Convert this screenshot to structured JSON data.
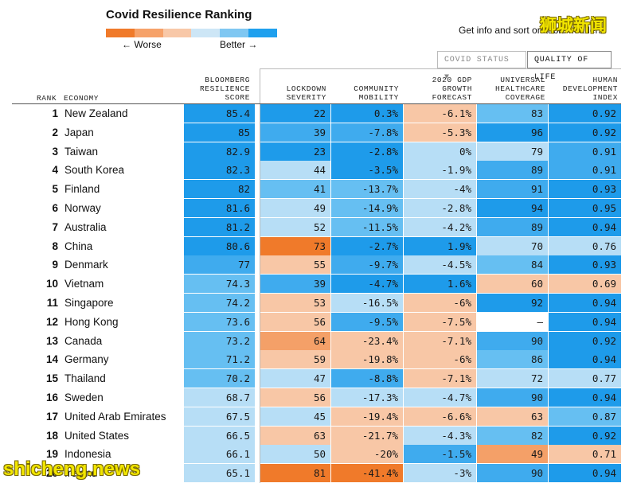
{
  "title": "Covid Resilience Ranking",
  "legend": {
    "worse": "← Worse",
    "better": "Better →",
    "scale_colors": [
      "#f07a2a",
      "#f6a26a",
      "#f8c8a8",
      "#cde6f6",
      "#7fc7f2",
      "#1fa0ee"
    ]
  },
  "info_text": "Get info and sort on table headers",
  "tabs": [
    {
      "label": "COVID STATUS ▼",
      "active": false
    },
    {
      "label": "QUALITY OF LIFE",
      "active": true
    }
  ],
  "headers": {
    "rank": "RANK",
    "economy": "ECONOMY",
    "score": [
      "BLOOMBERG",
      "RESILIENCE",
      "SCORE"
    ],
    "lockdown": [
      "LOCKDOWN",
      "SEVERITY"
    ],
    "mobility": [
      "COMMUNITY",
      "MOBILITY"
    ],
    "gdp": [
      "2020 GDP",
      "GROWTH",
      "FORECAST"
    ],
    "health": [
      "UNIVERSAL",
      "HEALTHCARE",
      "COVERAGE"
    ],
    "hdi": [
      "HUMAN",
      "DEVELOPMENT",
      "INDEX"
    ]
  },
  "rows": [
    {
      "rank": "1",
      "economy": "New Zealand",
      "score": "85.4",
      "lockdown": "22",
      "mobility": "0.3%",
      "gdp": "-6.1%",
      "health": "83",
      "hdi": "0.92"
    },
    {
      "rank": "2",
      "economy": "Japan",
      "score": "85",
      "lockdown": "39",
      "mobility": "-7.8%",
      "gdp": "-5.3%",
      "health": "96",
      "hdi": "0.92"
    },
    {
      "rank": "3",
      "economy": "Taiwan",
      "score": "82.9",
      "lockdown": "23",
      "mobility": "-2.8%",
      "gdp": "0%",
      "health": "79",
      "hdi": "0.91"
    },
    {
      "rank": "4",
      "economy": "South Korea",
      "score": "82.3",
      "lockdown": "44",
      "mobility": "-3.5%",
      "gdp": "-1.9%",
      "health": "89",
      "hdi": "0.91"
    },
    {
      "rank": "5",
      "economy": "Finland",
      "score": "82",
      "lockdown": "41",
      "mobility": "-13.7%",
      "gdp": "-4%",
      "health": "91",
      "hdi": "0.93"
    },
    {
      "rank": "6",
      "economy": "Norway",
      "score": "81.6",
      "lockdown": "49",
      "mobility": "-14.9%",
      "gdp": "-2.8%",
      "health": "94",
      "hdi": "0.95"
    },
    {
      "rank": "7",
      "economy": "Australia",
      "score": "81.2",
      "lockdown": "52",
      "mobility": "-11.5%",
      "gdp": "-4.2%",
      "health": "89",
      "hdi": "0.94"
    },
    {
      "rank": "8",
      "economy": "China",
      "score": "80.6",
      "lockdown": "73",
      "mobility": "-2.7%",
      "gdp": "1.9%",
      "health": "70",
      "hdi": "0.76"
    },
    {
      "rank": "9",
      "economy": "Denmark",
      "score": "77",
      "lockdown": "55",
      "mobility": "-9.7%",
      "gdp": "-4.5%",
      "health": "84",
      "hdi": "0.93"
    },
    {
      "rank": "10",
      "economy": "Vietnam",
      "score": "74.3",
      "lockdown": "39",
      "mobility": "-4.7%",
      "gdp": "1.6%",
      "health": "60",
      "hdi": "0.69"
    },
    {
      "rank": "11",
      "economy": "Singapore",
      "score": "74.2",
      "lockdown": "53",
      "mobility": "-16.5%",
      "gdp": "-6%",
      "health": "92",
      "hdi": "0.94"
    },
    {
      "rank": "12",
      "economy": "Hong Kong",
      "score": "73.6",
      "lockdown": "56",
      "mobility": "-9.5%",
      "gdp": "-7.5%",
      "health": "–",
      "hdi": "0.94"
    },
    {
      "rank": "13",
      "economy": "Canada",
      "score": "73.2",
      "lockdown": "64",
      "mobility": "-23.4%",
      "gdp": "-7.1%",
      "health": "90",
      "hdi": "0.92"
    },
    {
      "rank": "14",
      "economy": "Germany",
      "score": "71.2",
      "lockdown": "59",
      "mobility": "-19.8%",
      "gdp": "-6%",
      "health": "86",
      "hdi": "0.94"
    },
    {
      "rank": "15",
      "economy": "Thailand",
      "score": "70.2",
      "lockdown": "47",
      "mobility": "-8.8%",
      "gdp": "-7.1%",
      "health": "72",
      "hdi": "0.77"
    },
    {
      "rank": "16",
      "economy": "Sweden",
      "score": "68.7",
      "lockdown": "56",
      "mobility": "-17.3%",
      "gdp": "-4.7%",
      "health": "90",
      "hdi": "0.94"
    },
    {
      "rank": "17",
      "economy": "United Arab Emirates",
      "score": "67.5",
      "lockdown": "45",
      "mobility": "-19.4%",
      "gdp": "-6.6%",
      "health": "63",
      "hdi": "0.87"
    },
    {
      "rank": "18",
      "economy": "United States",
      "score": "66.5",
      "lockdown": "63",
      "mobility": "-21.7%",
      "gdp": "-4.3%",
      "health": "82",
      "hdi": "0.92"
    },
    {
      "rank": "19",
      "economy": "Indonesia",
      "score": "66.1",
      "lockdown": "50",
      "mobility": "-20%",
      "gdp": "-1.5%",
      "health": "49",
      "hdi": "0.71"
    },
    {
      "rank": "20",
      "economy": "Ireland",
      "score": "65.1",
      "lockdown": "81",
      "mobility": "-41.4%",
      "gdp": "-3%",
      "health": "90",
      "hdi": "0.94"
    }
  ],
  "cell_colors": {
    "score": [
      "#1e9bea",
      "#1e9bea",
      "#1e9bea",
      "#1e9bea",
      "#1e9bea",
      "#1e9bea",
      "#1e9bea",
      "#1e9bea",
      "#3fabee",
      "#66bff2",
      "#66bff2",
      "#66bff2",
      "#66bff2",
      "#66bff2",
      "#66bff2",
      "#b7def6",
      "#b7def6",
      "#b7def6",
      "#b7def6",
      "#b7def6"
    ],
    "lockdown": [
      "#1e9bea",
      "#3fabee",
      "#1e9bea",
      "#b7def6",
      "#66bff2",
      "#b7def6",
      "#b7def6",
      "#f07a2a",
      "#f8c7a6",
      "#3fabee",
      "#f8c7a6",
      "#f8c7a6",
      "#f4a068",
      "#f8c7a6",
      "#b7def6",
      "#f8c7a6",
      "#b7def6",
      "#f8c7a6",
      "#b7def6",
      "#f07a2a"
    ],
    "mobility": [
      "#1e9bea",
      "#3fabee",
      "#1e9bea",
      "#1e9bea",
      "#66bff2",
      "#66bff2",
      "#66bff2",
      "#1e9bea",
      "#3fabee",
      "#1e9bea",
      "#b7def6",
      "#3fabee",
      "#f8c7a6",
      "#f8c7a6",
      "#3fabee",
      "#b7def6",
      "#f8c7a6",
      "#f8c7a6",
      "#f8c7a6",
      "#f07a2a"
    ],
    "gdp": [
      "#f8c7a6",
      "#f8c7a6",
      "#b7def6",
      "#b7def6",
      "#b7def6",
      "#b7def6",
      "#b7def6",
      "#1e9bea",
      "#b7def6",
      "#1e9bea",
      "#f8c7a6",
      "#f8c7a6",
      "#f8c7a6",
      "#f8c7a6",
      "#f8c7a6",
      "#b7def6",
      "#f8c7a6",
      "#b7def6",
      "#3fabee",
      "#b7def6"
    ],
    "health": [
      "#66bff2",
      "#1e9bea",
      "#b7def6",
      "#3fabee",
      "#3fabee",
      "#1e9bea",
      "#3fabee",
      "#b7def6",
      "#66bff2",
      "#f8c7a6",
      "#1e9bea",
      "#ffffff",
      "#3fabee",
      "#66bff2",
      "#b7def6",
      "#3fabee",
      "#f8c7a6",
      "#66bff2",
      "#f4a068",
      "#3fabee"
    ],
    "hdi": [
      "#1e9bea",
      "#1e9bea",
      "#3fabee",
      "#3fabee",
      "#1e9bea",
      "#1e9bea",
      "#1e9bea",
      "#b7def6",
      "#1e9bea",
      "#f8c7a6",
      "#1e9bea",
      "#1e9bea",
      "#1e9bea",
      "#1e9bea",
      "#b7def6",
      "#1e9bea",
      "#66bff2",
      "#1e9bea",
      "#f8c7a6",
      "#1e9bea"
    ]
  },
  "watermarks": {
    "top": "狮城新闻",
    "bottom": "shicheng.news"
  }
}
